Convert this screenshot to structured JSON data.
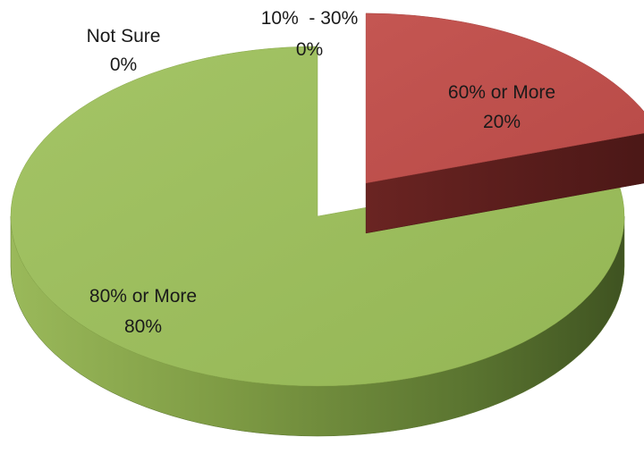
{
  "chart_data": {
    "type": "pie",
    "style": "3d-exploded",
    "title": "",
    "legend": "none",
    "categories": [
      "10% - 30%",
      "60% or More",
      "80% or More",
      "Not Sure"
    ],
    "values": [
      0,
      20,
      80,
      0
    ],
    "data_labels": [
      {
        "category": "10%  - 30%",
        "value": "0%"
      },
      {
        "category": "60% or More",
        "value": "20%"
      },
      {
        "category": "80% or More",
        "value": "80%"
      },
      {
        "category": "Not Sure",
        "value": "0%"
      }
    ],
    "colors": {
      "60% or More": "#c0504d",
      "80% or More": "#9bbb59"
    }
  }
}
